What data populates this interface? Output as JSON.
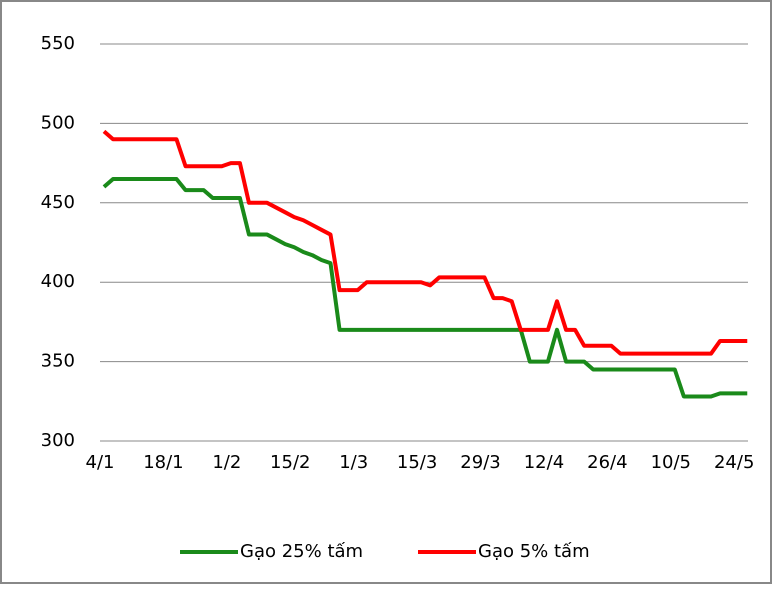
{
  "chart_data": {
    "type": "line",
    "categories": [
      "4/1",
      null,
      null,
      null,
      null,
      null,
      null,
      "18/1",
      null,
      null,
      null,
      null,
      null,
      null,
      "1/2",
      null,
      null,
      null,
      null,
      null,
      null,
      "15/2",
      null,
      null,
      null,
      null,
      null,
      null,
      "1/3",
      null,
      null,
      null,
      null,
      null,
      null,
      "15/3",
      null,
      null,
      null,
      null,
      null,
      null,
      "29/3",
      null,
      null,
      null,
      null,
      null,
      null,
      "12/4",
      null,
      null,
      null,
      null,
      null,
      null,
      "26/4",
      null,
      null,
      null,
      null,
      null,
      null,
      "10/5",
      null,
      null,
      null,
      null,
      null,
      null,
      "24/5",
      null
    ],
    "series": [
      {
        "name": "Gạo 25% tấm",
        "color": "#1a8a1a",
        "values": [
          460,
          465,
          465,
          465,
          465,
          465,
          465,
          465,
          465,
          458,
          458,
          458,
          453,
          453,
          453,
          453,
          430,
          430,
          430,
          427,
          424,
          422,
          419,
          417,
          414,
          412,
          370,
          370,
          370,
          370,
          370,
          370,
          370,
          370,
          370,
          370,
          370,
          370,
          370,
          370,
          370,
          370,
          370,
          370,
          370,
          370,
          370,
          350,
          350,
          350,
          370,
          350,
          350,
          350,
          345,
          345,
          345,
          345,
          345,
          345,
          345,
          345,
          345,
          345,
          328,
          328,
          328,
          328,
          330,
          330,
          330,
          330
        ]
      },
      {
        "name": "Gạo 5% tấm",
        "color": "#ff0000",
        "values": [
          495,
          490,
          490,
          490,
          490,
          490,
          490,
          490,
          490,
          473,
          473,
          473,
          473,
          473,
          475,
          475,
          450,
          450,
          450,
          447,
          444,
          441,
          439,
          436,
          433,
          430,
          395,
          395,
          395,
          400,
          400,
          400,
          400,
          400,
          400,
          400,
          398,
          403,
          403,
          403,
          403,
          403,
          403,
          390,
          390,
          388,
          370,
          370,
          370,
          370,
          388,
          370,
          370,
          360,
          360,
          360,
          360,
          355,
          355,
          355,
          355,
          355,
          355,
          355,
          355,
          355,
          355,
          355,
          363,
          363,
          363,
          363
        ]
      }
    ],
    "ylim": [
      300,
      550
    ],
    "yticks": [
      300,
      350,
      400,
      450,
      500,
      550
    ],
    "grid": true,
    "legend": "bottom"
  }
}
